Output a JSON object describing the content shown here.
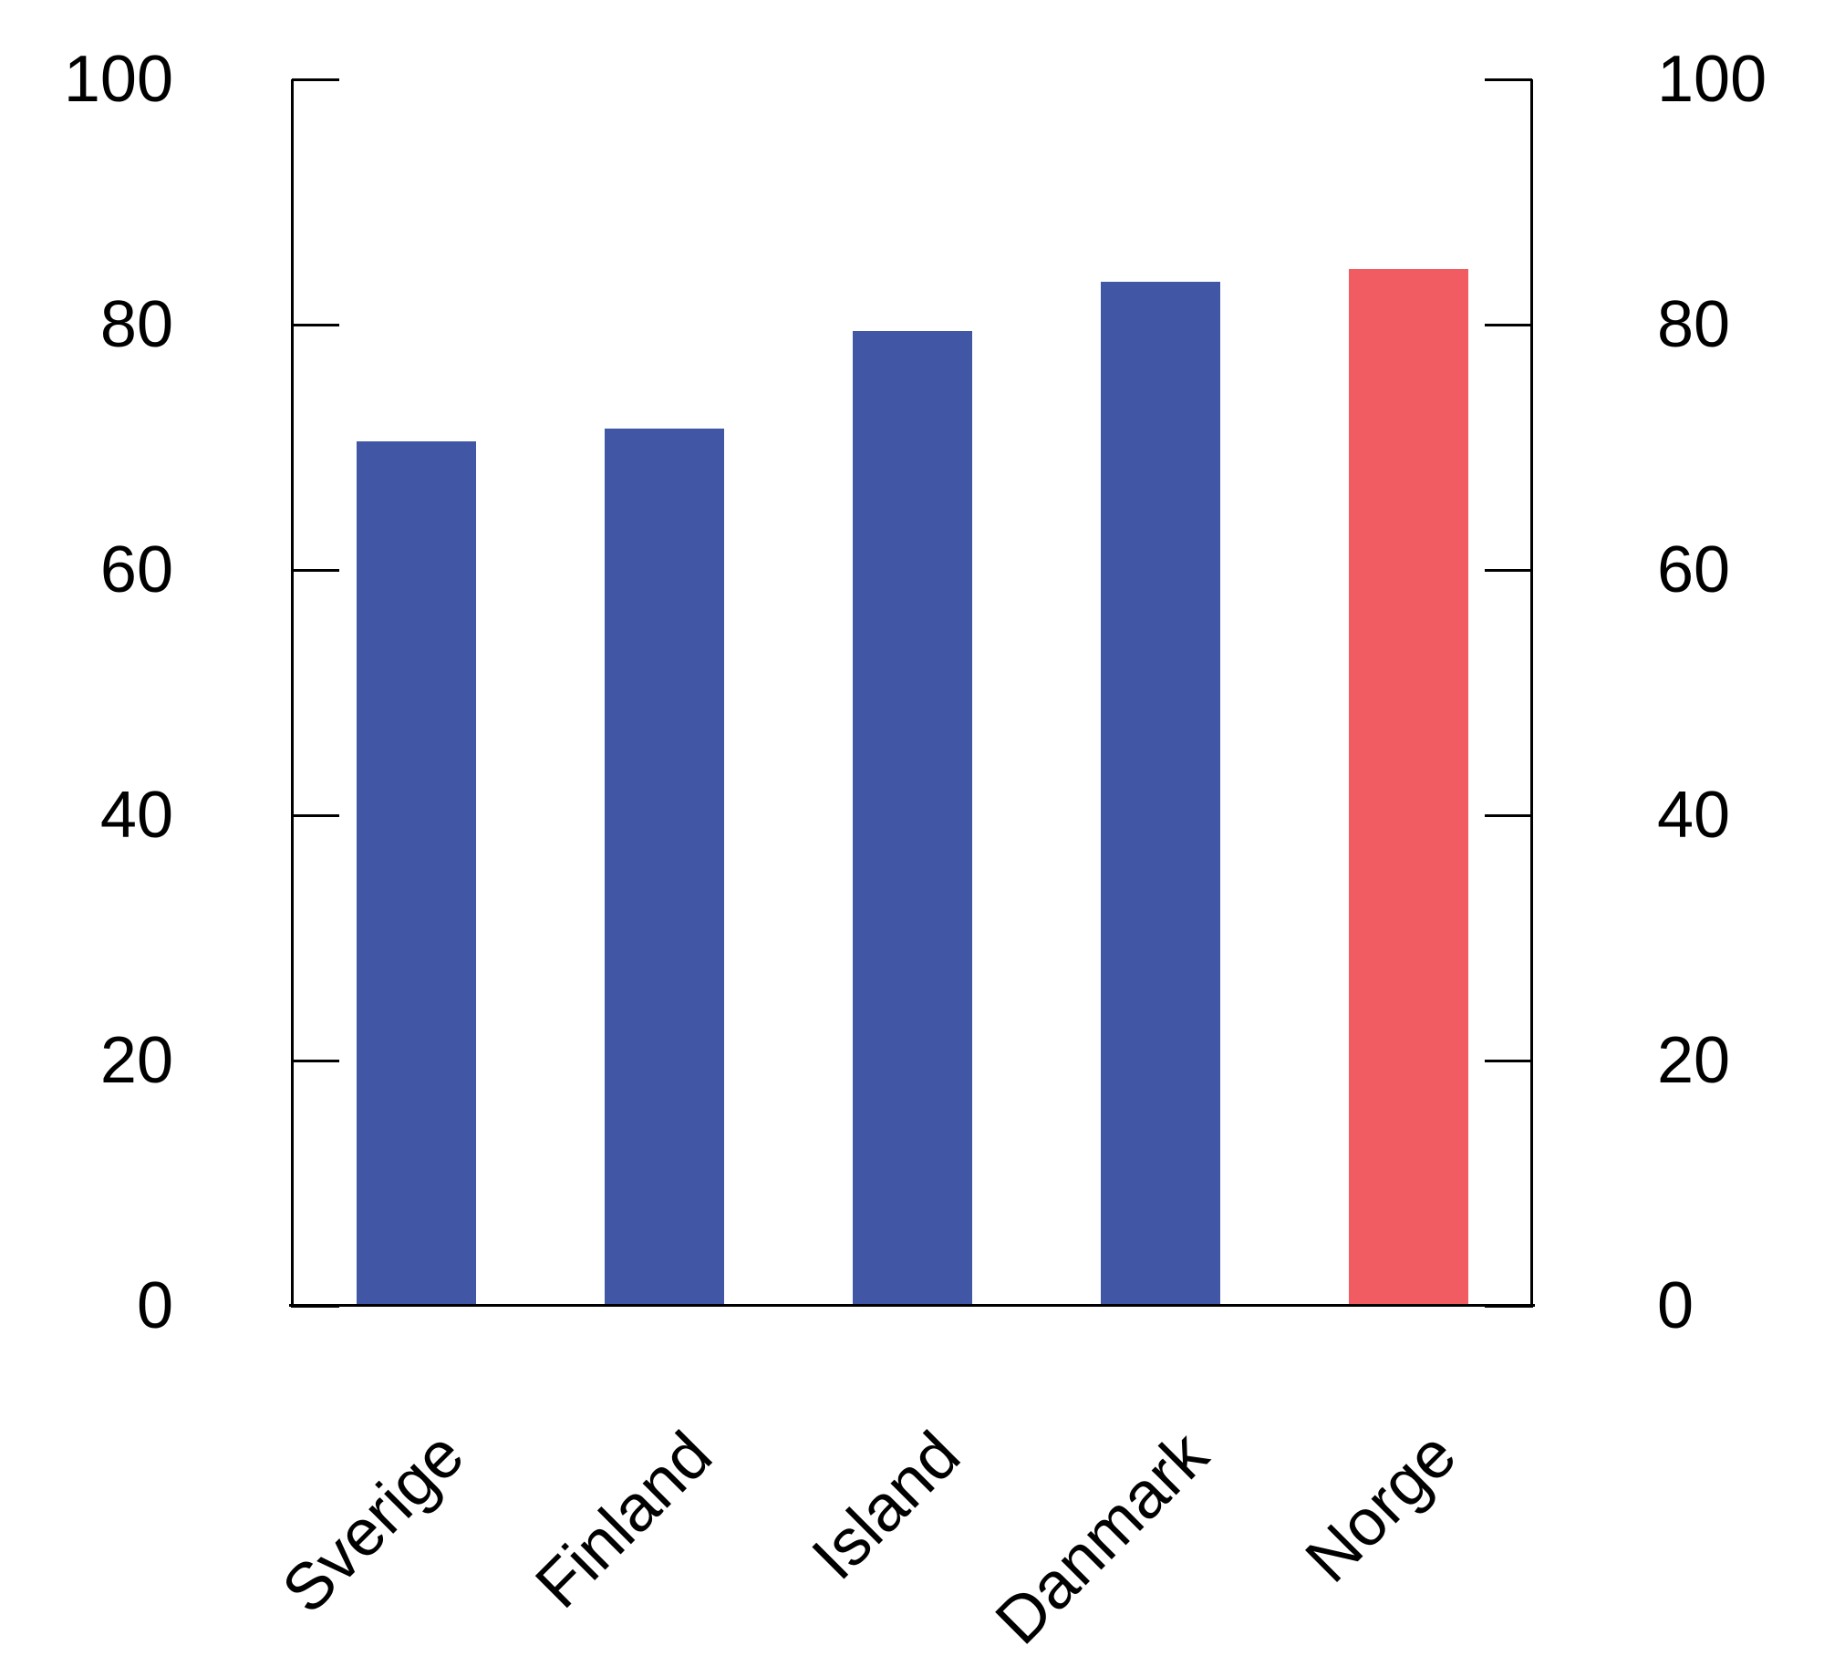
{
  "chart_data": {
    "type": "bar",
    "categories": [
      "Sverige",
      "Finland",
      "Island",
      "Danmark",
      "Norge"
    ],
    "values": [
      70.5,
      71.5,
      79.5,
      83.5,
      84.5
    ],
    "bar_colors": [
      "#4156A4",
      "#4156A4",
      "#4156A4",
      "#4156A4",
      "#F15C63"
    ],
    "highlight_category": "Norge",
    "highlight_color": "#F15C63",
    "default_bar_color": "#4156A4",
    "title": "",
    "xlabel": "",
    "ylabel": "",
    "ylim": [
      0,
      100
    ],
    "y_ticks": [
      100,
      80,
      60,
      40,
      20,
      0
    ],
    "y_axis_sides": [
      "left",
      "right"
    ],
    "x_tick_rotation_deg": -45,
    "grid": false,
    "legend": false,
    "axis_color": "#000000",
    "background_color": "#FFFFFF"
  }
}
